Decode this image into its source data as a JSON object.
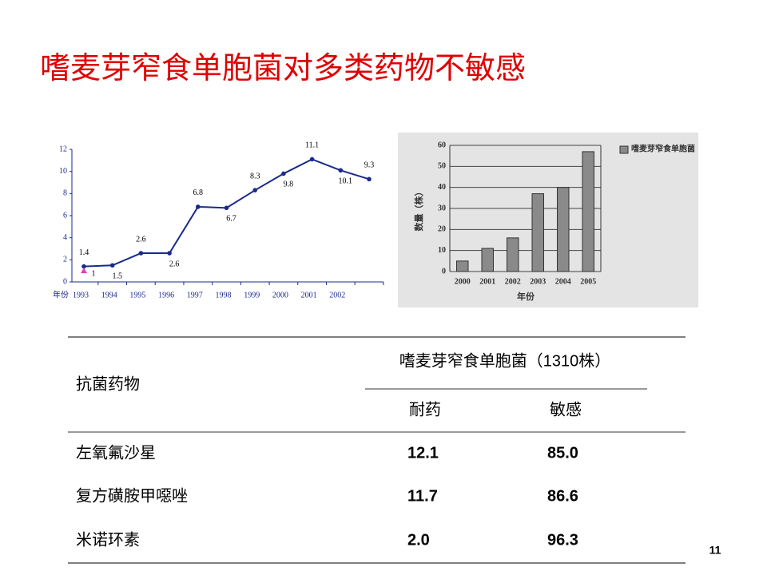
{
  "title": "嗜麦芽窄食单胞菌对多类药物不敏感",
  "chart_data": [
    {
      "type": "line",
      "x_label": "年份",
      "categories": [
        "1993",
        "1994",
        "1995",
        "1996",
        "1997",
        "1998",
        "1999",
        "2000",
        "2001",
        "2002",
        null
      ],
      "series": [
        {
          "color": "#1a2a8a",
          "values": [
            1.4,
            1.5,
            2.6,
            2.6,
            6.8,
            6.7,
            8.3,
            9.8,
            11.1,
            10.1,
            9.3
          ]
        },
        {
          "color": "#e040c0",
          "values": [
            1,
            null,
            null,
            null,
            null,
            null,
            null,
            null,
            null,
            null,
            null
          ]
        }
      ],
      "ylim": [
        0,
        12
      ],
      "yticks": [
        0,
        2,
        4,
        6,
        8,
        10,
        12
      ]
    },
    {
      "type": "bar",
      "x_label": "年份",
      "y_label": "数量（株）",
      "categories": [
        "2000",
        "2001",
        "2002",
        "2003",
        "2004",
        "2005"
      ],
      "series": [
        {
          "name": "嗜麦芽窄食单胞菌",
          "color": "#8a8a8a",
          "values": [
            5,
            11,
            16,
            37,
            40,
            57
          ]
        }
      ],
      "ylim": [
        0,
        60
      ],
      "yticks": [
        0,
        10,
        20,
        30,
        40,
        50,
        60
      ],
      "grid": true,
      "legend": "top-right"
    }
  ],
  "table": {
    "row_header": "抗菌药物",
    "group_header": "嗜麦芽窄食单胞菌（1310株）",
    "columns": [
      "耐药",
      "敏感"
    ],
    "rows": [
      [
        "左氧氟沙星",
        "12.1",
        "85.0"
      ],
      [
        "复方磺胺甲噁唑",
        "11.7",
        "86.6"
      ],
      [
        "米诺环素",
        "2.0",
        "96.3"
      ]
    ]
  },
  "page_number": "11"
}
